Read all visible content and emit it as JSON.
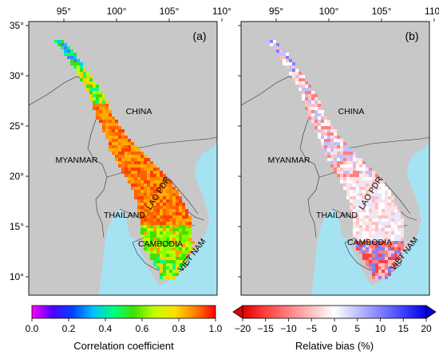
{
  "panels": [
    {
      "label": "(a)",
      "countries": [
        "CHINA",
        "MYANMAR",
        "LAO PDR",
        "THAILAND",
        "CAMBODIA",
        "VIET NAM"
      ]
    },
    {
      "label": "(b)",
      "countries": [
        "CHINA",
        "MYANMAR",
        "LAO PDR",
        "THAILAND",
        "CAMBODIA",
        "VIET NAM"
      ]
    }
  ],
  "axes": {
    "lon_ticks": [
      "95°",
      "100°",
      "105°",
      "110°"
    ],
    "lat_ticks": [
      "35°",
      "30°",
      "25°",
      "20°",
      "15°",
      "10°"
    ]
  },
  "colorbars": [
    {
      "title": "Correlation coefficient",
      "ticks": [
        "0.0",
        "0.2",
        "0.4",
        "0.6",
        "0.8",
        "1.0"
      ],
      "range": [
        0.0,
        1.0
      ],
      "colors": [
        "#ff00ff",
        "#5000ff",
        "#0040ff",
        "#00c0ff",
        "#00ff80",
        "#40e000",
        "#c0ff00",
        "#ffe000",
        "#ff8000",
        "#ff0000"
      ]
    },
    {
      "title": "Relative bias (%)",
      "ticks": [
        "−20",
        "−15",
        "−10",
        "−5",
        "0",
        "5",
        "10",
        "15",
        "20"
      ],
      "range": [
        -20,
        20
      ],
      "extend": "both",
      "colors": [
        "#e00000",
        "#ff4040",
        "#ff8080",
        "#ffc0c0",
        "#ffffff",
        "#c0c0ff",
        "#8080ff",
        "#4040ff",
        "#0000e0"
      ]
    }
  ],
  "colors": {
    "land": "#c8c8c8",
    "ocean": "#a6e3f2",
    "border": "#333333"
  }
}
